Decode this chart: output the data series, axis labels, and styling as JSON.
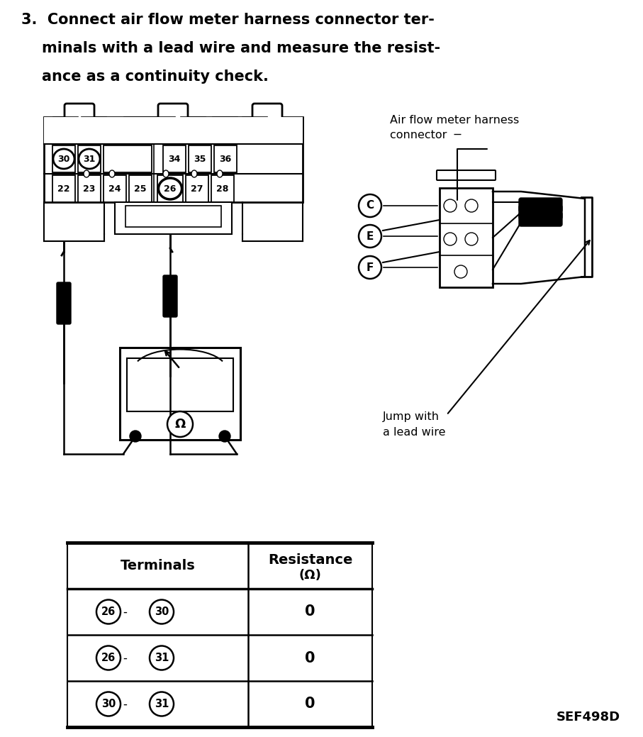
{
  "title_line1": "3.  Connect air flow meter harness connector ter-",
  "title_line2": "    minals with a lead wire and measure the resist-",
  "title_line3": "    ance as a continuity check.",
  "bg_color": "#ffffff",
  "label_afm_1": "Air flow meter harness",
  "label_afm_2": "connector",
  "label_jump_1": "Jump with",
  "label_jump_2": "a lead wire",
  "label_sef": "SEF498D",
  "table_col1": "Terminals",
  "table_col2_1": "Resistance",
  "table_col2_2": "(Ω)",
  "row_terminals": [
    [
      "26",
      "30"
    ],
    [
      "26",
      "31"
    ],
    [
      "30",
      "31"
    ]
  ],
  "row_values": [
    "0",
    "0",
    "0"
  ],
  "connector_labels": [
    "C",
    "E",
    "F"
  ],
  "circled_in_connector_row1": [
    "30",
    "31"
  ],
  "circled_in_connector_row2": [
    "26"
  ]
}
